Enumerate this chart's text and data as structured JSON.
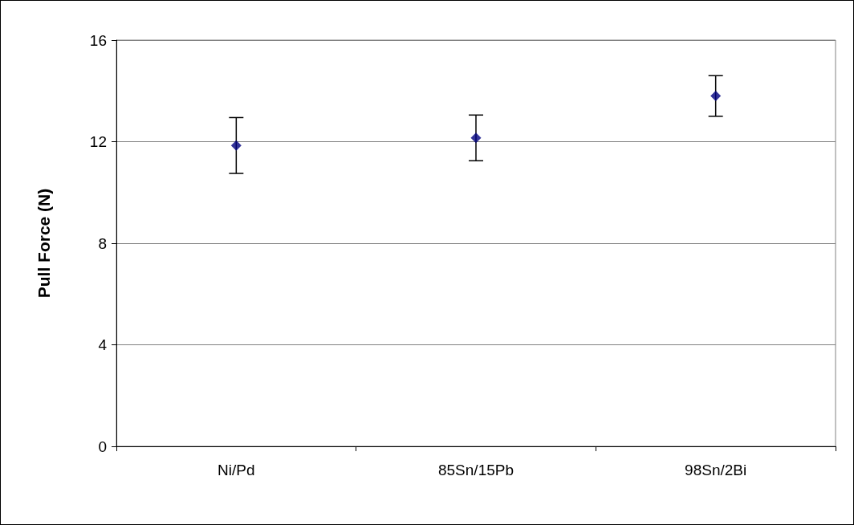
{
  "chart_data": {
    "type": "scatter",
    "ylabel": "Pull Force (N)",
    "categories": [
      "Ni/Pd",
      "85Sn/15Pb",
      "98Sn/2Bi"
    ],
    "series": [
      {
        "color": "#000080",
        "values": [
          11.85,
          12.15,
          13.8
        ],
        "errors": [
          1.1,
          0.9,
          0.8
        ]
      }
    ],
    "ylim": [
      0,
      16
    ],
    "yticks": [
      0,
      4,
      8,
      12,
      16
    ],
    "grid": "y",
    "marker": "diamond"
  }
}
